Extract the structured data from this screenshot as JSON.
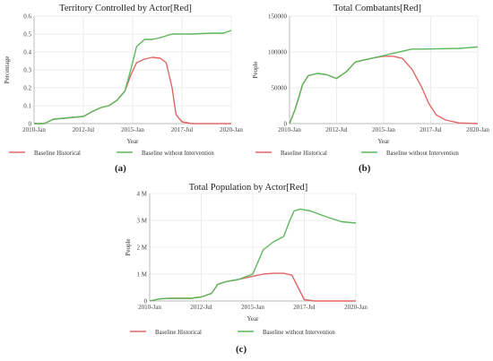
{
  "colors": {
    "historical": "#e06666",
    "intervention": "#5cb85c",
    "grid": "#e6e6e6",
    "axis": "#bbbbbb"
  },
  "chart_data": [
    {
      "id": "a",
      "type": "line",
      "title": "Territory Controlled by Actor[Red]",
      "xlabel": "Year",
      "ylabel": "Percentage",
      "panel_label": "(a)",
      "xlim": [
        2010.0,
        2020.0
      ],
      "ylim": [
        0,
        0.6
      ],
      "x_ticks": [
        {
          "v": 2010.0,
          "label": "2010-Jan"
        },
        {
          "v": 2012.5,
          "label": "2012-Jul"
        },
        {
          "v": 2015.0,
          "label": "2015-Jan"
        },
        {
          "v": 2017.5,
          "label": "2017-Jul"
        },
        {
          "v": 2020.0,
          "label": "2020-Jan"
        }
      ],
      "y_ticks": [
        {
          "v": 0,
          "label": "0"
        },
        {
          "v": 0.1,
          "label": "0.1"
        },
        {
          "v": 0.2,
          "label": "0.2"
        },
        {
          "v": 0.3,
          "label": "0.3"
        },
        {
          "v": 0.4,
          "label": "0.4"
        },
        {
          "v": 0.5,
          "label": "0.5"
        },
        {
          "v": 0.6,
          "label": "0.6"
        }
      ],
      "grid": true,
      "legend_position": "bottom",
      "series": [
        {
          "name": "Baseline Historical",
          "color_key": "historical",
          "x": [
            2010.0,
            2010.5,
            2011.0,
            2011.5,
            2012.0,
            2012.5,
            2013.0,
            2013.4,
            2013.8,
            2014.2,
            2014.6,
            2014.9,
            2015.2,
            2015.6,
            2016.0,
            2016.4,
            2016.7,
            2017.0,
            2017.2,
            2017.5,
            2018.0,
            2019.0,
            2020.0
          ],
          "y": [
            0.0,
            0.0,
            0.025,
            0.03,
            0.035,
            0.04,
            0.07,
            0.09,
            0.1,
            0.13,
            0.18,
            0.27,
            0.34,
            0.36,
            0.37,
            0.365,
            0.34,
            0.2,
            0.05,
            0.01,
            0.0,
            0.0,
            0.0
          ]
        },
        {
          "name": "Baseline without Intervention",
          "color_key": "intervention",
          "x": [
            2010.0,
            2010.5,
            2011.0,
            2011.5,
            2012.0,
            2012.5,
            2013.0,
            2013.4,
            2013.8,
            2014.2,
            2014.6,
            2014.9,
            2015.2,
            2015.6,
            2016.0,
            2016.4,
            2016.7,
            2017.0,
            2017.5,
            2018.0,
            2019.0,
            2019.6,
            2020.0
          ],
          "y": [
            0.0,
            0.0,
            0.025,
            0.03,
            0.035,
            0.04,
            0.07,
            0.09,
            0.1,
            0.13,
            0.18,
            0.3,
            0.43,
            0.47,
            0.47,
            0.48,
            0.49,
            0.5,
            0.5,
            0.5,
            0.505,
            0.505,
            0.52
          ]
        }
      ]
    },
    {
      "id": "b",
      "type": "line",
      "title": "Total Combatants[Red]",
      "xlabel": "Year",
      "ylabel": "People",
      "panel_label": "(b)",
      "xlim": [
        2010.0,
        2020.0
      ],
      "ylim": [
        0,
        150000
      ],
      "x_ticks": [
        {
          "v": 2010.0,
          "label": "2010-Jan"
        },
        {
          "v": 2012.5,
          "label": "2012-Jul"
        },
        {
          "v": 2015.0,
          "label": "2015-Jan"
        },
        {
          "v": 2017.5,
          "label": "2017-Jul"
        },
        {
          "v": 2020.0,
          "label": "2020-Jan"
        }
      ],
      "y_ticks": [
        {
          "v": 0,
          "label": "0"
        },
        {
          "v": 50000,
          "label": "50000"
        },
        {
          "v": 100000,
          "label": "100000"
        },
        {
          "v": 150000,
          "label": "150000"
        }
      ],
      "grid": true,
      "legend_position": "bottom",
      "series": [
        {
          "name": "Baseline Historical",
          "color_key": "historical",
          "x": [
            2010.0,
            2010.3,
            2010.7,
            2011.0,
            2011.5,
            2012.0,
            2012.5,
            2013.0,
            2013.5,
            2014.0,
            2014.5,
            2015.0,
            2015.5,
            2016.0,
            2016.5,
            2017.0,
            2017.4,
            2017.8,
            2018.3,
            2019.0,
            2020.0
          ],
          "y": [
            0,
            20000,
            55000,
            67000,
            70000,
            68000,
            63000,
            72000,
            86000,
            89000,
            92000,
            94000,
            94000,
            91000,
            76000,
            52000,
            28000,
            12000,
            5000,
            1000,
            0
          ]
        },
        {
          "name": "Baseline without Intervention",
          "color_key": "intervention",
          "x": [
            2010.0,
            2010.3,
            2010.7,
            2011.0,
            2011.5,
            2012.0,
            2012.5,
            2013.0,
            2013.5,
            2014.0,
            2014.5,
            2015.0,
            2015.5,
            2016.0,
            2016.5,
            2017.0,
            2018.0,
            2019.0,
            2020.0
          ],
          "y": [
            0,
            20000,
            55000,
            67000,
            70000,
            68000,
            63000,
            72000,
            86000,
            89000,
            92000,
            95000,
            98000,
            101000,
            104000,
            104000,
            104500,
            105000,
            107000
          ]
        }
      ]
    },
    {
      "id": "c",
      "type": "line",
      "title": "Total Population by Actor[Red]",
      "xlabel": "Year",
      "ylabel": "People",
      "panel_label": "(c)",
      "xlim": [
        2010.0,
        2020.0
      ],
      "ylim": [
        0,
        4000000
      ],
      "x_ticks": [
        {
          "v": 2010.0,
          "label": "2010-Jan"
        },
        {
          "v": 2012.5,
          "label": "2012-Jul"
        },
        {
          "v": 2015.0,
          "label": "2015-Jan"
        },
        {
          "v": 2017.5,
          "label": "2017-Jul"
        },
        {
          "v": 2020.0,
          "label": "2020-Jan"
        }
      ],
      "y_ticks": [
        {
          "v": 0,
          "label": "0"
        },
        {
          "v": 1000000,
          "label": "1 M"
        },
        {
          "v": 2000000,
          "label": "2 M"
        },
        {
          "v": 3000000,
          "label": "3 M"
        },
        {
          "v": 4000000,
          "label": "4 M"
        }
      ],
      "grid": true,
      "legend_position": "bottom",
      "series": [
        {
          "name": "Baseline Historical",
          "color_key": "historical",
          "x": [
            2010.0,
            2010.5,
            2011.0,
            2012.0,
            2012.5,
            2013.0,
            2013.3,
            2013.7,
            2014.3,
            2015.0,
            2015.5,
            2016.0,
            2016.5,
            2016.9,
            2017.2,
            2017.5,
            2018.0,
            2019.0,
            2020.0
          ],
          "y": [
            0,
            80000,
            100000,
            100000,
            150000,
            280000,
            620000,
            720000,
            800000,
            920000,
            1000000,
            1030000,
            1030000,
            960000,
            500000,
            50000,
            0,
            0,
            0
          ]
        },
        {
          "name": "Baseline without Intervention",
          "color_key": "intervention",
          "x": [
            2010.0,
            2010.5,
            2011.0,
            2012.0,
            2012.5,
            2013.0,
            2013.3,
            2013.7,
            2014.3,
            2015.0,
            2015.5,
            2016.0,
            2016.5,
            2016.8,
            2017.0,
            2017.3,
            2017.8,
            2018.5,
            2019.3,
            2020.0
          ],
          "y": [
            0,
            80000,
            100000,
            100000,
            150000,
            280000,
            620000,
            720000,
            800000,
            1000000,
            1900000,
            2200000,
            2400000,
            3000000,
            3350000,
            3420000,
            3350000,
            3150000,
            2950000,
            2900000
          ]
        }
      ]
    }
  ]
}
